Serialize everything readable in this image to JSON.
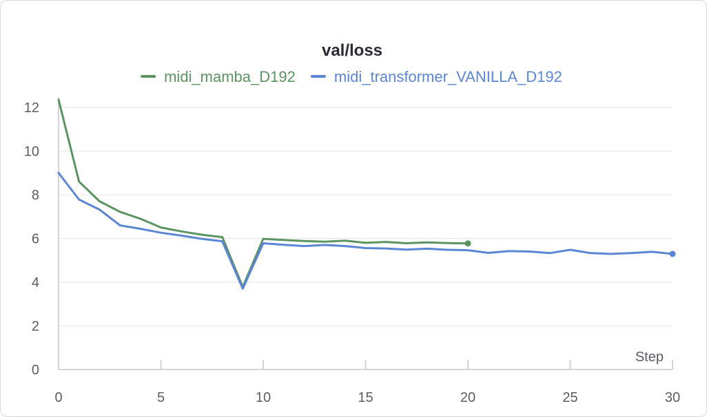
{
  "chart_data": {
    "type": "line",
    "title": "val/loss",
    "xlabel": "Step",
    "ylabel": "",
    "xlim": [
      0,
      30
    ],
    "ylim": [
      0,
      12.4
    ],
    "x_ticks": [
      0,
      5,
      10,
      15,
      20,
      25,
      30
    ],
    "y_ticks": [
      0,
      2,
      4,
      6,
      8,
      10,
      12
    ],
    "grid": true,
    "legend_position": "top",
    "series": [
      {
        "name": "midi_mamba_D192",
        "color": "#5a9460",
        "x": [
          0,
          1,
          2,
          3,
          4,
          5,
          6,
          7,
          8,
          9,
          10,
          11,
          12,
          13,
          14,
          15,
          16,
          17,
          18,
          19,
          20
        ],
        "y": [
          12.35,
          8.6,
          7.7,
          7.22,
          6.9,
          6.5,
          6.32,
          6.17,
          6.06,
          3.78,
          5.98,
          5.93,
          5.88,
          5.85,
          5.9,
          5.8,
          5.84,
          5.78,
          5.82,
          5.79,
          5.77
        ]
      },
      {
        "name": "midi_transformer_VANILLA_D192",
        "color": "#5b86d6",
        "x": [
          0,
          1,
          2,
          3,
          4,
          5,
          6,
          7,
          8,
          9,
          10,
          11,
          12,
          13,
          14,
          15,
          16,
          17,
          18,
          19,
          20,
          21,
          22,
          23,
          24,
          25,
          26,
          27,
          28,
          29,
          30
        ],
        "y": [
          9.0,
          7.78,
          7.32,
          6.6,
          6.44,
          6.26,
          6.13,
          5.98,
          5.87,
          3.7,
          5.78,
          5.71,
          5.65,
          5.7,
          5.65,
          5.56,
          5.54,
          5.49,
          5.53,
          5.48,
          5.46,
          5.34,
          5.42,
          5.4,
          5.33,
          5.48,
          5.33,
          5.29,
          5.33,
          5.39,
          5.29
        ]
      }
    ]
  }
}
